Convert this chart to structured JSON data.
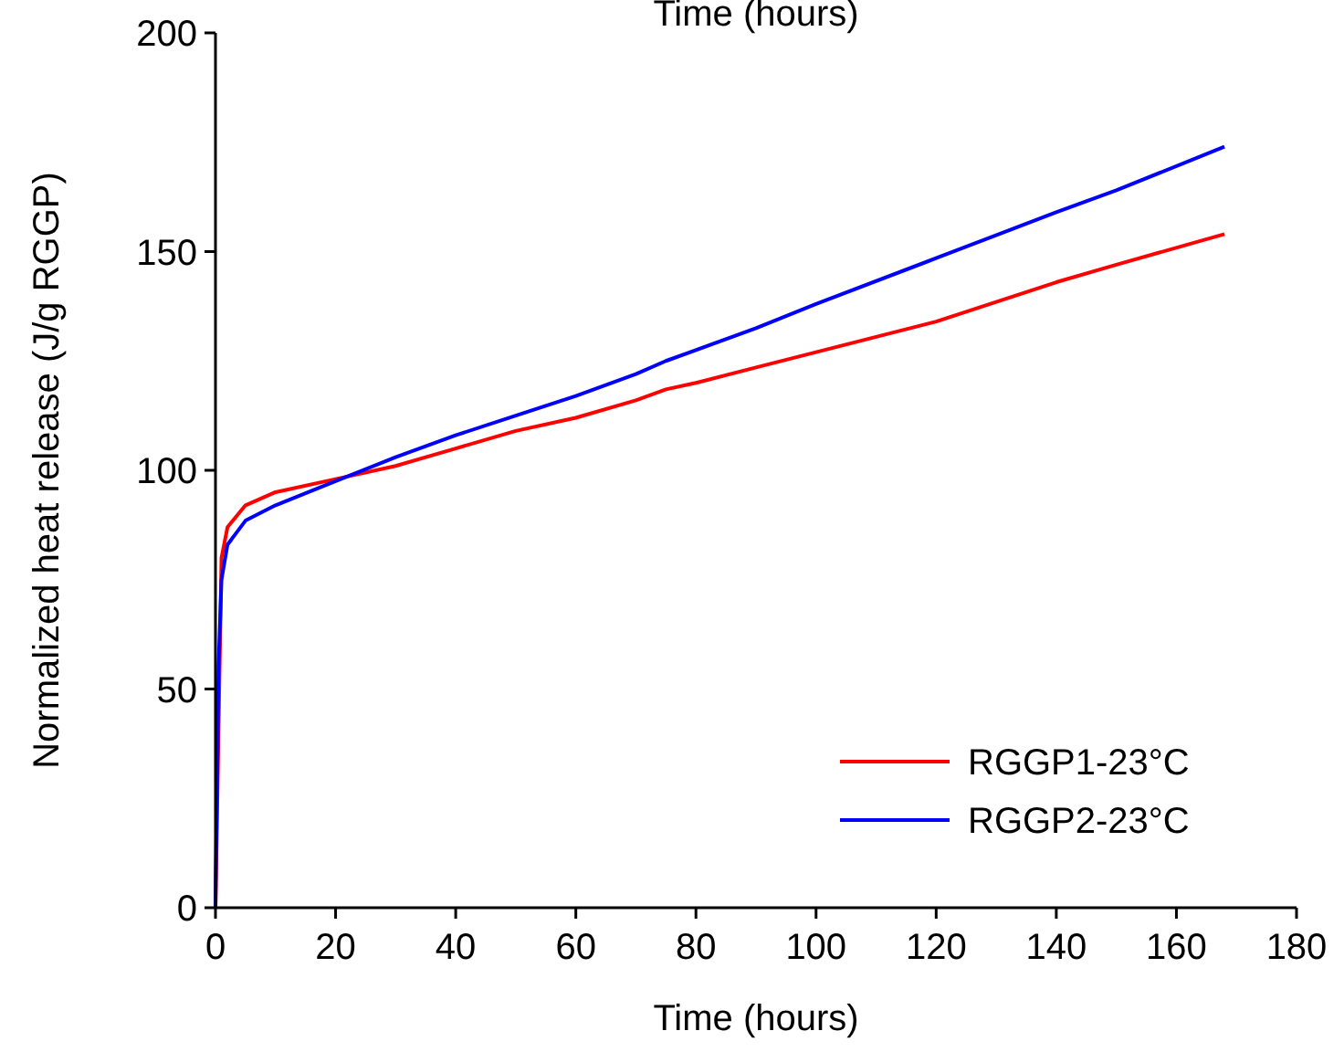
{
  "chart_data": {
    "type": "line",
    "title": "Time (hours)",
    "xlabel": "Time (hours)",
    "ylabel": "Normalized heat release (J/g RGGP)",
    "xlim": [
      0,
      180
    ],
    "xticks": [
      0,
      20,
      40,
      60,
      80,
      100,
      120,
      140,
      160,
      180
    ],
    "ylim": [
      0,
      200
    ],
    "yticks": [
      0,
      50,
      100,
      150,
      200
    ],
    "grid": false,
    "legend": "bottom right",
    "marker": "none",
    "line_style": "solid",
    "x": [
      0,
      0.5,
      1,
      2,
      5,
      10,
      20,
      30,
      40,
      50,
      60,
      70,
      75,
      80,
      90,
      100,
      120,
      140,
      150,
      168
    ],
    "series": [
      {
        "name": "RGGP1-23°C",
        "color": "#ff0000",
        "x": [
          0,
          1,
          2,
          5,
          10,
          20,
          30,
          40,
          50,
          60,
          70,
          75,
          80,
          90,
          100,
          120,
          140,
          150,
          168
        ],
        "values": [
          0,
          80,
          87,
          92,
          95,
          98,
          101,
          105,
          109,
          112,
          116,
          118.5,
          120,
          123.5,
          127,
          134,
          143,
          147,
          154
        ]
      },
      {
        "name": "RGGP2-23°C",
        "color": "#0000ff",
        "values": [
          0,
          55,
          75,
          83,
          88.5,
          92,
          97.5,
          103,
          108,
          112.5,
          117,
          122,
          125,
          127.5,
          132.5,
          138,
          148.5,
          159,
          164,
          174
        ]
      }
    ]
  }
}
